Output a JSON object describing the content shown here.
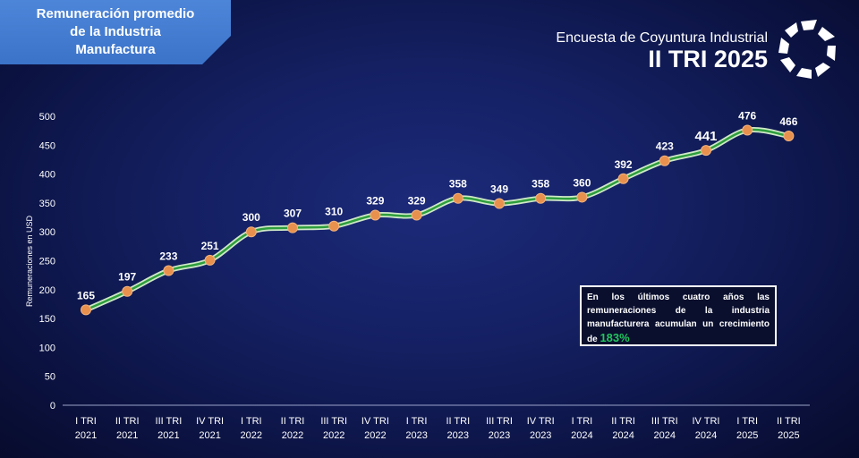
{
  "header": {
    "title_line1": "Remuneración promedio",
    "title_line2": "de la Industria",
    "title_line3": "Manufactura",
    "survey": "Encuesta de Coyuntura Industrial",
    "period": "II TRI 2025",
    "logo_icon": "pinwheel-logo-icon"
  },
  "callout": {
    "text": "En los últimos cuatro años las remuneraciones de la industria manufacturera acumulan un crecimiento de",
    "highlight": "183%"
  },
  "colors": {
    "line_outer": "#cfe9c8",
    "line_inner": "#2e9e3c",
    "marker": "#e8914e",
    "title_bg": "#3f77cc",
    "highlight": "#22c55e"
  },
  "chart_data": {
    "type": "line",
    "ylabel": "Remuneraciones en USD",
    "xlabel": "",
    "ylim": [
      0,
      500
    ],
    "yticks": [
      0,
      50,
      100,
      150,
      200,
      250,
      300,
      350,
      400,
      450,
      500
    ],
    "categories": [
      [
        "I TRI",
        "2021"
      ],
      [
        "II TRI",
        "2021"
      ],
      [
        "III TRI",
        "2021"
      ],
      [
        "IV TRI",
        "2021"
      ],
      [
        "I TRI",
        "2022"
      ],
      [
        "II TRI",
        "2022"
      ],
      [
        "III TRI",
        "2022"
      ],
      [
        "IV TRI",
        "2022"
      ],
      [
        "I TRI",
        "2023"
      ],
      [
        "II TRI",
        "2023"
      ],
      [
        "III TRI",
        "2023"
      ],
      [
        "IV TRI",
        "2023"
      ],
      [
        "I TRI",
        "2024"
      ],
      [
        "II TRI",
        "2024"
      ],
      [
        "III TRI",
        "2024"
      ],
      [
        "IV TRI",
        "2024"
      ],
      [
        "I TRI",
        "2025"
      ],
      [
        "II TRI",
        "2025"
      ]
    ],
    "series": [
      {
        "name": "Remuneración promedio",
        "values": [
          165,
          197,
          233,
          251,
          300,
          307,
          310,
          329,
          329,
          358,
          349,
          358,
          360,
          392,
          423,
          441,
          476,
          466
        ]
      }
    ]
  }
}
